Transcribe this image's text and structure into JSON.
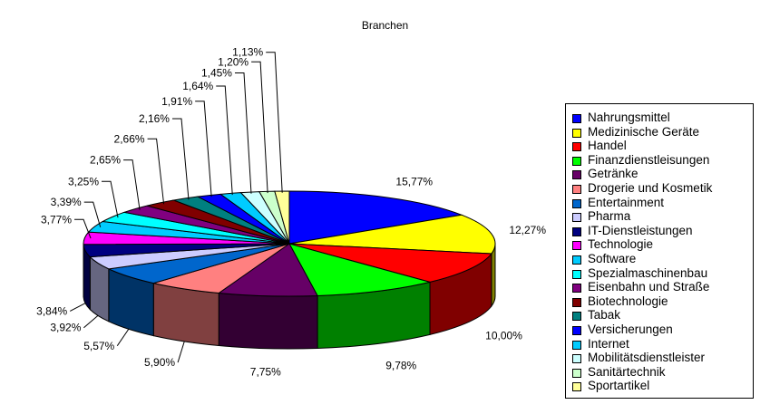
{
  "chart_data": {
    "type": "pie",
    "title": "Branchen",
    "legend_position": "right",
    "slices": [
      {
        "label": "Nahrungsmittel",
        "value": 15.77,
        "value_label": "15,77%",
        "color": "#0000ff"
      },
      {
        "label": "Medizinische Geräte",
        "value": 12.27,
        "value_label": "12,27%",
        "color": "#ffff00"
      },
      {
        "label": "Handel",
        "value": 10.0,
        "value_label": "10,00%",
        "color": "#ff0000"
      },
      {
        "label": "Finanzdienstleisungen",
        "value": 9.78,
        "value_label": "9,78%",
        "color": "#00ff00"
      },
      {
        "label": "Getränke",
        "value": 7.75,
        "value_label": "7,75%",
        "color": "#660066"
      },
      {
        "label": "Drogerie und Kosmetik",
        "value": 5.9,
        "value_label": "5,90%",
        "color": "#ff8080"
      },
      {
        "label": "Entertainment",
        "value": 5.57,
        "value_label": "5,57%",
        "color": "#0066cc"
      },
      {
        "label": "Pharma",
        "value": 3.92,
        "value_label": "3,92%",
        "color": "#ccccff"
      },
      {
        "label": "IT-Dienstleistungen",
        "value": 3.84,
        "value_label": "3,84%",
        "color": "#000080"
      },
      {
        "label": "Technologie",
        "value": 3.77,
        "value_label": "3,77%",
        "color": "#ff00ff"
      },
      {
        "label": "Software",
        "value": 3.39,
        "value_label": "3,39%",
        "color": "#00ccff"
      },
      {
        "label": "Spezialmaschinenbau",
        "value": 3.25,
        "value_label": "3,25%",
        "color": "#00ffff"
      },
      {
        "label": "Eisenbahn und Straße",
        "value": 2.65,
        "value_label": "2,65%",
        "color": "#800080"
      },
      {
        "label": "Biotechnologie",
        "value": 2.66,
        "value_label": "2,66%",
        "color": "#800000"
      },
      {
        "label": "Tabak",
        "value": 2.16,
        "value_label": "2,16%",
        "color": "#008080"
      },
      {
        "label": "Versicherungen",
        "value": 1.91,
        "value_label": "1,91%",
        "color": "#0000ff"
      },
      {
        "label": "Internet",
        "value": 1.64,
        "value_label": "1,64%",
        "color": "#00ccff"
      },
      {
        "label": "Mobilitätsdienstleister",
        "value": 1.45,
        "value_label": "1,45%",
        "color": "#ccffff"
      },
      {
        "label": "Sanitärtechnik",
        "value": 1.2,
        "value_label": "1,20%",
        "color": "#ccffcc"
      },
      {
        "label": "Sportartikel",
        "value": 1.13,
        "value_label": "1,13%",
        "color": "#ffff99"
      }
    ]
  }
}
